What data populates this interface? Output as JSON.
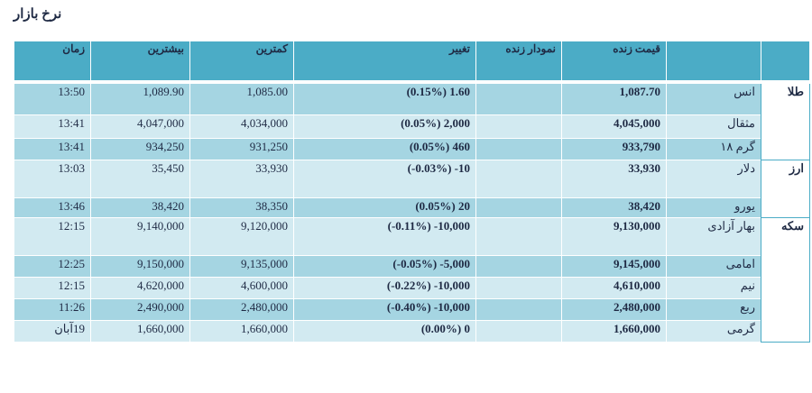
{
  "title": "نرخ بازار",
  "table": {
    "columns": [
      "قیمت زنده",
      "نمودار زنده",
      "تغییر",
      "کمترین",
      "بیشترین",
      "زمان"
    ],
    "groups": [
      {
        "label": "طلا",
        "rows": [
          {
            "name": "انس",
            "price": "1,087.70",
            "change": "(0.15%) 1.60",
            "min": "1,085.00",
            "max": "1,089.90",
            "time": "13:50"
          },
          {
            "name": "مثقال",
            "price": "4,045,000",
            "change": "(0.05%) 2,000",
            "min": "4,034,000",
            "max": "4,047,000",
            "time": "13:41"
          },
          {
            "name": "گرم ۱۸",
            "price": "933,790",
            "change": "(0.05%) 460",
            "min": "931,250",
            "max": "934,250",
            "time": "13:41"
          }
        ]
      },
      {
        "label": "ارز",
        "rows": [
          {
            "name": "دلار",
            "price": "33,930",
            "change": "(-0.03%) -10",
            "min": "33,930",
            "max": "35,450",
            "time": "13:03"
          },
          {
            "name": "یورو",
            "price": "38,420",
            "change": "(0.05%) 20",
            "min": "38,350",
            "max": "38,420",
            "time": "13:46"
          }
        ]
      },
      {
        "label": "سکه",
        "rows": [
          {
            "name": "بهار آزادی",
            "price": "9,130,000",
            "change": "(-0.11%) -10,000",
            "min": "9,120,000",
            "max": "9,140,000",
            "time": "12:15"
          },
          {
            "name": "امامی",
            "price": "9,145,000",
            "change": "(-0.05%) -5,000",
            "min": "9,135,000",
            "max": "9,150,000",
            "time": "12:25"
          },
          {
            "name": "نیم",
            "price": "4,610,000",
            "change": "(-0.22%) -10,000",
            "min": "4,600,000",
            "max": "4,620,000",
            "time": "12:15"
          },
          {
            "name": "ربع",
            "price": "2,480,000",
            "change": "(-0.40%) -10,000",
            "min": "2,480,000",
            "max": "2,490,000",
            "time": "11:26"
          },
          {
            "name": "گرمی",
            "price": "1,660,000",
            "change": "(0.00%) 0",
            "min": "1,660,000",
            "max": "1,660,000",
            "time": "19آبان"
          }
        ]
      }
    ]
  }
}
